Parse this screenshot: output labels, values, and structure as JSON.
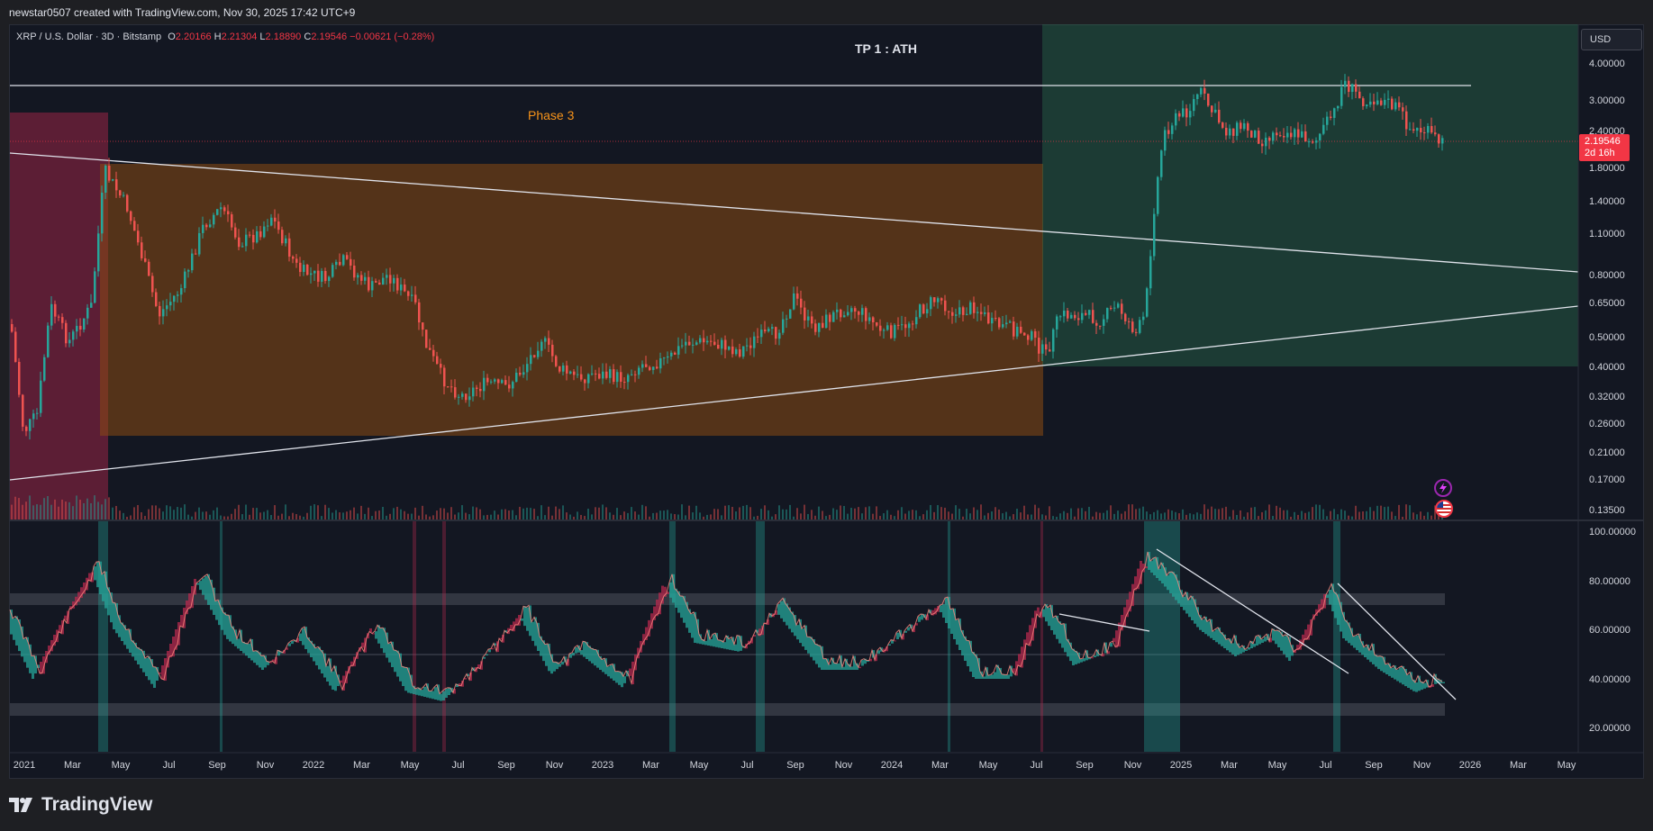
{
  "header": {
    "credit": "newstar0507 created with TradingView.com, Nov 30, 2025 17:42 UTC+9"
  },
  "symbol": {
    "title": "XRP / U.S. Dollar · 3D · Bitstamp",
    "o_label": "O",
    "o_value": "2.20166",
    "h_label": "H",
    "h_value": "2.21304",
    "l_label": "L",
    "l_value": "2.18890",
    "c_label": "C",
    "c_value": "2.19546",
    "change": "−0.00621 (−0.28%)"
  },
  "annotations": {
    "tp": "TP 1 : ATH",
    "phase": "Phase 3"
  },
  "currency": "USD",
  "last_price": {
    "value": "2.19546",
    "countdown": "2d 16h"
  },
  "price_axis": [
    "4.00000",
    "3.00000",
    "2.40000",
    "1.80000",
    "1.40000",
    "1.10000",
    "0.80000",
    "0.65000",
    "0.50000",
    "0.40000",
    "0.32000",
    "0.26000",
    "0.21000",
    "0.17000",
    "0.13500"
  ],
  "osc_axis": [
    "100.00000",
    "80.00000",
    "60.00000",
    "40.00000",
    "20.00000"
  ],
  "time_axis": [
    "2021",
    "Mar",
    "May",
    "Jul",
    "Sep",
    "Nov",
    "2022",
    "Mar",
    "May",
    "Jul",
    "Sep",
    "Nov",
    "2023",
    "Mar",
    "May",
    "Jul",
    "Sep",
    "Nov",
    "2024",
    "Mar",
    "May",
    "Jul",
    "Sep",
    "Nov",
    "2025",
    "Mar",
    "May",
    "Jul",
    "Sep",
    "Nov",
    "2026",
    "Mar",
    "May"
  ],
  "footer": {
    "brand": "TradingView"
  },
  "colors": {
    "bg": "#131722",
    "up": "#26a69a",
    "down": "#ef5350",
    "phase_box": "#f7931a",
    "green_zone": "#2e7d57",
    "red_zone": "#b5294e",
    "price_tag": "#f23645"
  },
  "icons": [
    "lightning-icon",
    "us-flag-icon",
    "tradingview-logo-icon"
  ]
}
